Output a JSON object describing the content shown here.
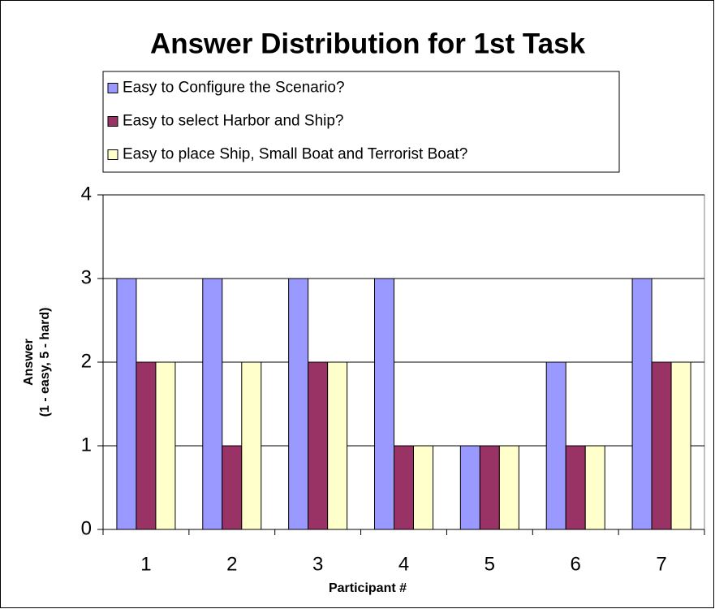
{
  "chart_data": {
    "type": "bar",
    "title": "Answer Distribution for 1st Task",
    "xlabel": "Participant #",
    "ylabel": [
      "Answer",
      "(1 - easy, 5 - hard)"
    ],
    "categories": [
      "1",
      "2",
      "3",
      "4",
      "5",
      "6",
      "7"
    ],
    "series": [
      {
        "name": "Easy to Configure the Scenario?",
        "color": "#9999ff",
        "values": [
          3,
          3,
          3,
          3,
          1,
          2,
          3
        ]
      },
      {
        "name": "Easy to select Harbor and Ship?",
        "color": "#993366",
        "values": [
          2,
          1,
          2,
          1,
          1,
          1,
          2
        ]
      },
      {
        "name": "Easy to place Ship, Small Boat and Terrorist Boat?",
        "color": "#ffffcc",
        "values": [
          2,
          2,
          2,
          1,
          1,
          1,
          2
        ]
      }
    ],
    "ylim": [
      0,
      4
    ],
    "yticks": [
      0,
      1,
      2,
      3,
      4
    ],
    "grid": true,
    "legend": "top"
  }
}
